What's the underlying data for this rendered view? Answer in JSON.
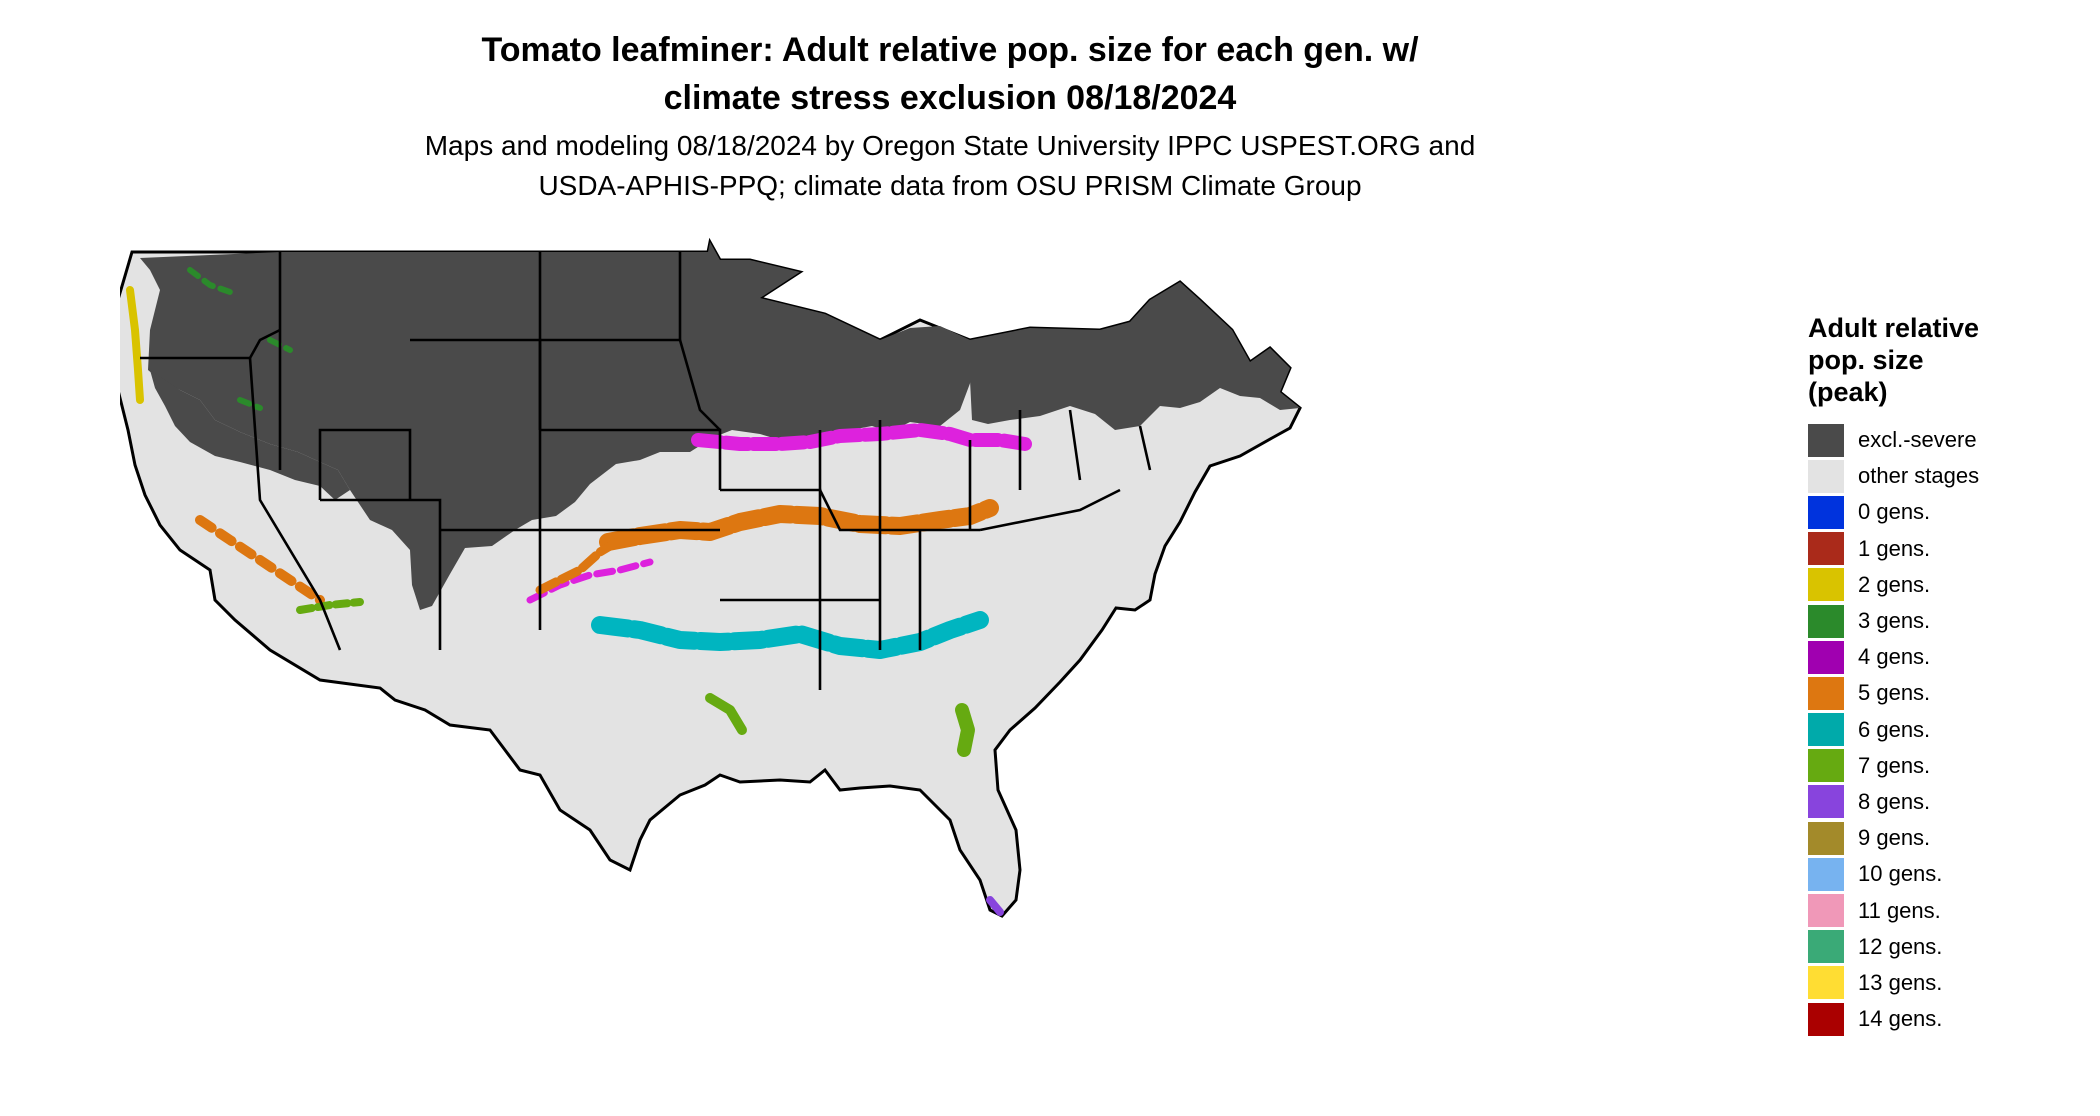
{
  "title": {
    "line1": "Tomato leafminer: Adult relative pop. size for each gen. w/",
    "line2": "climate stress exclusion 08/18/2024"
  },
  "subtitle": {
    "line1": "Maps and modeling 08/18/2024 by Oregon State University IPPC USPEST.ORG and",
    "line2": "USDA-APHIS-PPQ; climate data from OSU PRISM Climate Group"
  },
  "legend": {
    "title_lines": [
      "Adult relative",
      "pop. size",
      "(peak)"
    ],
    "items": [
      {
        "label": "excl.-severe",
        "color": "#4a4a4a"
      },
      {
        "label": "other stages",
        "color": "#e3e3e3"
      },
      {
        "label": "0 gens.",
        "color": "#0033dd"
      },
      {
        "label": "1 gens.",
        "color": "#aa2a1a"
      },
      {
        "label": "2 gens.",
        "color": "#d9c300"
      },
      {
        "label": "3 gens.",
        "color": "#2b8a2b"
      },
      {
        "label": "4 gens.",
        "color": "#a000b0"
      },
      {
        "label": "5 gens.",
        "color": "#dd7711"
      },
      {
        "label": "6 gens.",
        "color": "#00aaaa"
      },
      {
        "label": "7 gens.",
        "color": "#66aa11"
      },
      {
        "label": "8 gens.",
        "color": "#8844dd"
      },
      {
        "label": "9 gens.",
        "color": "#a38a2a"
      },
      {
        "label": "10 gens.",
        "color": "#77b3f0"
      },
      {
        "label": "11 gens.",
        "color": "#f098b8"
      },
      {
        "label": "12 gens.",
        "color": "#3aaa77"
      },
      {
        "label": "13 gens.",
        "color": "#ffdd33"
      },
      {
        "label": "14 gens.",
        "color": "#aa0000"
      }
    ]
  },
  "map_colors": {
    "excluded": "#4a4a4a",
    "other": "#e3e3e3",
    "magenta_band": "#dd22dd",
    "orange_band": "#dd7711",
    "cyan_band": "#00b5c0",
    "green_band": "#2b8a2b",
    "lime_band": "#66aa11",
    "yellow_band": "#d9c300",
    "purple_tip": "#8844dd",
    "borders": "#000000"
  }
}
